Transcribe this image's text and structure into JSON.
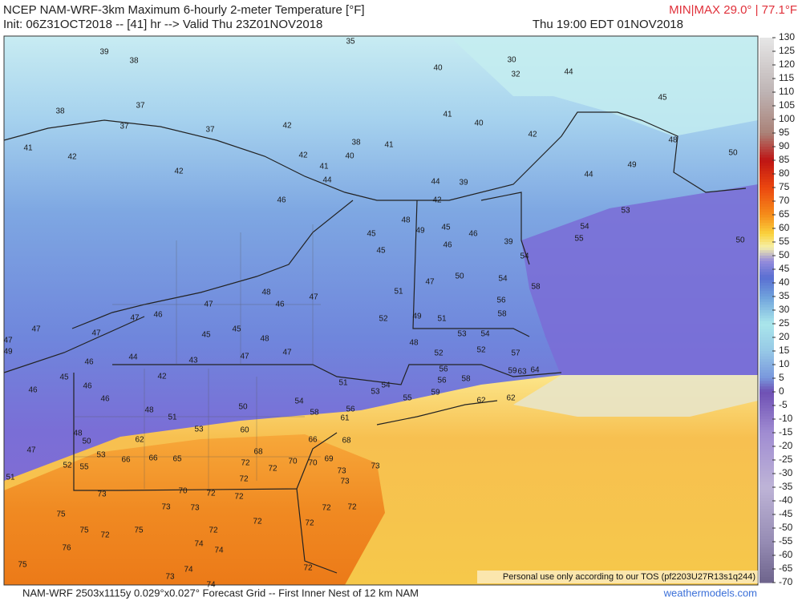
{
  "header": {
    "title": "NCEP NAM-WRF-3km Maximum 6-hourly 2-meter Temperature [°F]",
    "init": "Init: 06Z31OCT2018 -- [41] hr --> Valid Thu 23Z01NOV2018",
    "valid_local": "Thu 19:00 EDT 01NOV2018",
    "minmax": "MIN|MAX 29.0° | 77.1°F"
  },
  "map": {
    "station_values": [
      39,
      38,
      35,
      30,
      32,
      40,
      38,
      37,
      37,
      37,
      42,
      38,
      41,
      42,
      40,
      41,
      42,
      42,
      41,
      41,
      40,
      42,
      44,
      45,
      48,
      49,
      44,
      50,
      50,
      53,
      54,
      55,
      54,
      58,
      54,
      56,
      58,
      54,
      52,
      52,
      57,
      59,
      63,
      64,
      62,
      62,
      45,
      45,
      46,
      44,
      44,
      39,
      42,
      48,
      49,
      45,
      46,
      46,
      39,
      50,
      47,
      51,
      52,
      49,
      51,
      53,
      48,
      47,
      46,
      48,
      47,
      47,
      46,
      47,
      47,
      47,
      49,
      46,
      44,
      43,
      47,
      47,
      48,
      45,
      45,
      42,
      45,
      46,
      46,
      46,
      48,
      51,
      53,
      50,
      60,
      54,
      58,
      51,
      54,
      55,
      59,
      58,
      56,
      56,
      56,
      61,
      53,
      62,
      66,
      65,
      66,
      50,
      55,
      52,
      53,
      48,
      51,
      47,
      66,
      70,
      69,
      68,
      73,
      68,
      72,
      72,
      72,
      70,
      73,
      73,
      72,
      72,
      72,
      70,
      72,
      72,
      73,
      75,
      75,
      72,
      75,
      73,
      73,
      72,
      76,
      75,
      73,
      74,
      74,
      74,
      74,
      72,
      72
    ]
  },
  "colorbar": {
    "ticks": [
      130,
      125,
      120,
      115,
      110,
      105,
      100,
      95,
      90,
      85,
      80,
      75,
      70,
      65,
      60,
      55,
      50,
      45,
      40,
      35,
      30,
      25,
      20,
      15,
      10,
      5,
      0,
      -5,
      -10,
      -15,
      -20,
      -25,
      -30,
      -35,
      -40,
      -45,
      -50,
      -55,
      -60,
      -65,
      -70
    ]
  },
  "footer": {
    "grid_info": "NAM-WRF 2503x1115y 0.029°x0.027° Forecast Grid -- First Inner Nest of 12 km NAM",
    "site": "weathermodels.com",
    "tos": "Personal use only according to our TOS (pf2203U27R13s1q244)"
  }
}
